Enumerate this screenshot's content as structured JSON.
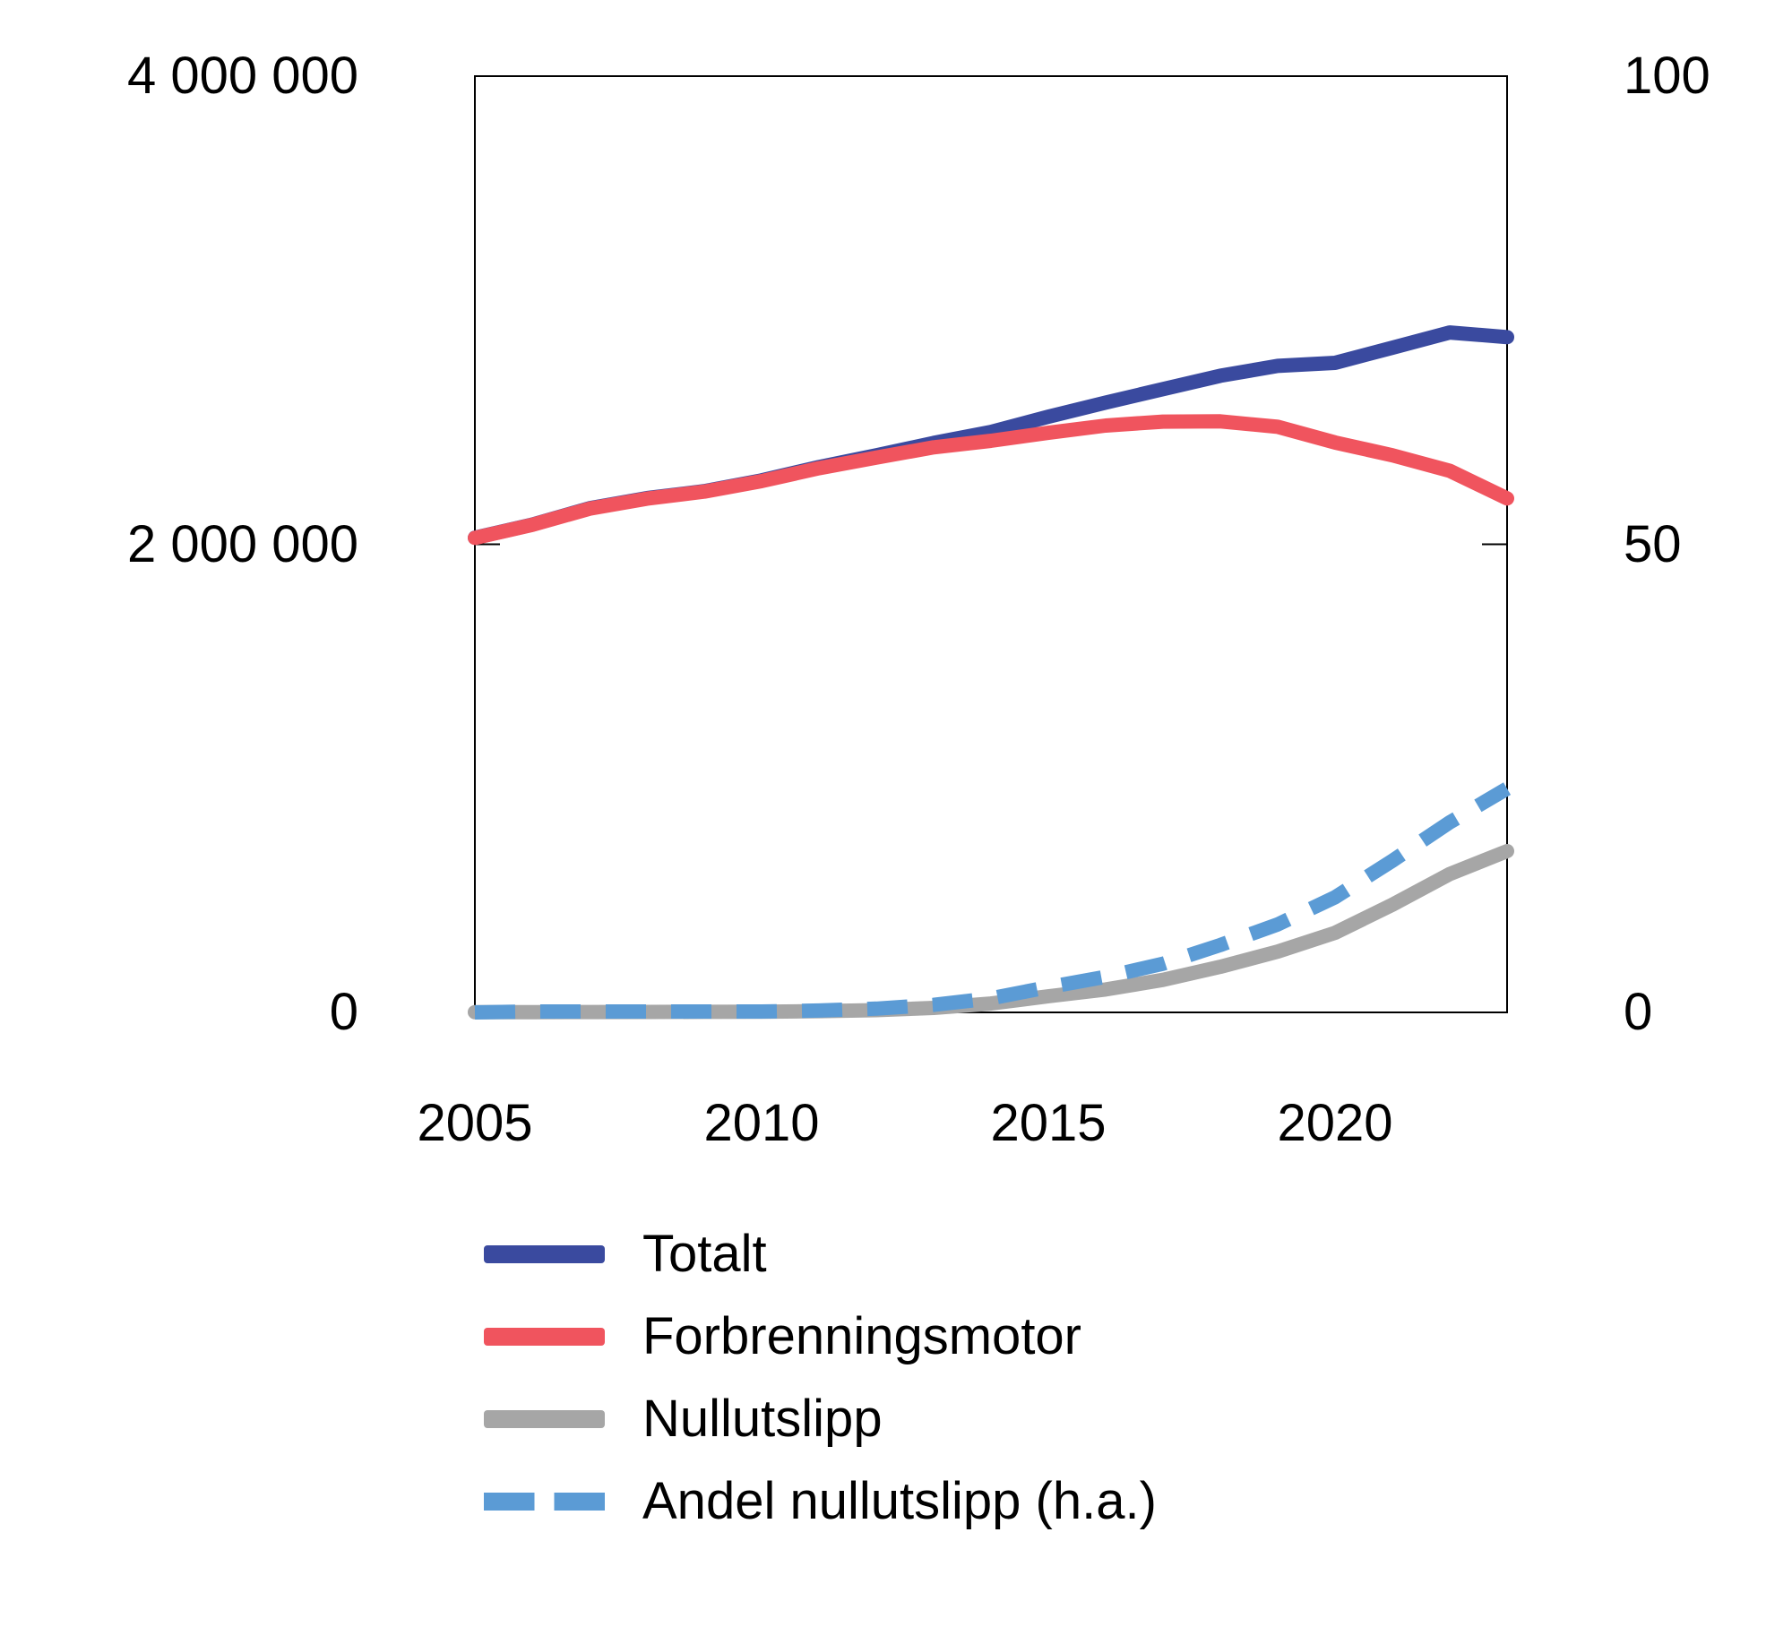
{
  "chart_data": {
    "type": "line",
    "title": "",
    "grid": false,
    "legend_position": "bottom-left",
    "x": [
      2005,
      2006,
      2007,
      2008,
      2009,
      2010,
      2011,
      2012,
      2013,
      2014,
      2015,
      2016,
      2017,
      2018,
      2019,
      2020,
      2021,
      2022,
      2023
    ],
    "x_tick_values": [
      2005,
      2010,
      2015,
      2020
    ],
    "x_tick_labels": [
      "2005",
      "2010",
      "2015",
      "2020"
    ],
    "left_axis": {
      "range": [
        0,
        4000000
      ],
      "tick_values": [
        4000000,
        2000000,
        0
      ],
      "tick_labels": [
        "4 000 000",
        "2 000 000",
        "0"
      ]
    },
    "right_axis": {
      "range": [
        0,
        100
      ],
      "tick_values": [
        100,
        50,
        0
      ],
      "tick_labels": [
        "100",
        "50",
        "0"
      ]
    },
    "series": [
      {
        "name": "Totalt",
        "color": "#3a4a9f",
        "axis": "left",
        "style": "solid",
        "values": [
          2028000,
          2084000,
          2154000,
          2197000,
          2227000,
          2273000,
          2330000,
          2380000,
          2433000,
          2480000,
          2545000,
          2605000,
          2663000,
          2720000,
          2762000,
          2775000,
          2840000,
          2905000,
          2885000
        ]
      },
      {
        "name": "Forbrenningsmotor",
        "color": "#f0545e",
        "axis": "left",
        "style": "solid",
        "values": [
          2027000,
          2083000,
          2152000,
          2195000,
          2225000,
          2270000,
          2325000,
          2370000,
          2414000,
          2442000,
          2476000,
          2507000,
          2524000,
          2525000,
          2502000,
          2435000,
          2380000,
          2314000,
          2196000
        ]
      },
      {
        "name": "Nullutslipp",
        "color": "#a6a6a6",
        "axis": "left",
        "style": "solid",
        "values": [
          1000,
          1300,
          1600,
          1900,
          2300,
          2900,
          5500,
          9600,
          19000,
          38000,
          69000,
          98000,
          139000,
          195000,
          260000,
          340000,
          460000,
          591000,
          689000
        ]
      },
      {
        "name": "Andel nullutslipp (h.a.)",
        "color": "#5b9bd5",
        "axis": "right",
        "style": "dashed",
        "values": [
          0.0,
          0.1,
          0.1,
          0.1,
          0.1,
          0.1,
          0.2,
          0.4,
          0.8,
          1.5,
          2.7,
          3.8,
          5.2,
          7.2,
          9.4,
          12.3,
          16.2,
          20.3,
          23.9
        ]
      }
    ]
  }
}
